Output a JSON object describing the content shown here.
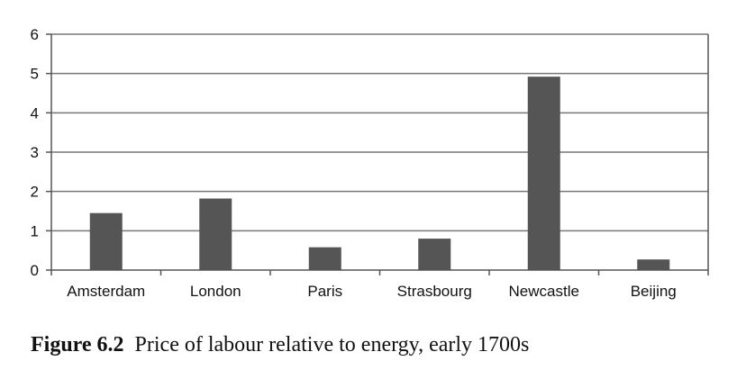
{
  "chart_data": {
    "type": "bar",
    "categories": [
      "Amsterdam",
      "London",
      "Paris",
      "Strasbourg",
      "Newcastle",
      "Beijing"
    ],
    "values": [
      1.45,
      1.82,
      0.58,
      0.8,
      4.92,
      0.27
    ],
    "title": "",
    "xlabel": "",
    "ylabel": "",
    "ylim": [
      0,
      6
    ],
    "yticks": [
      0,
      1,
      2,
      3,
      4,
      5,
      6
    ],
    "grid": true,
    "legend": "none",
    "colors": {
      "bar": "#555555",
      "grid": "#777777",
      "axis": "#555555"
    }
  },
  "caption": {
    "number": "Figure 6.2",
    "text": "Price of labour relative to energy, early 1700s"
  }
}
